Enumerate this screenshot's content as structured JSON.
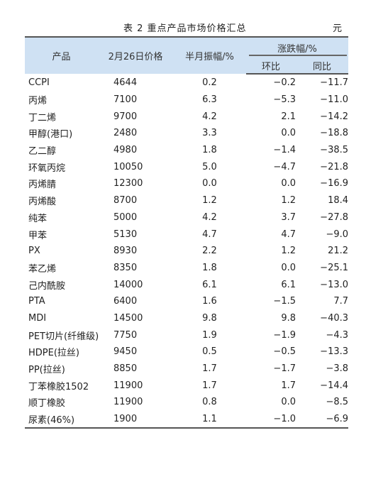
{
  "table": {
    "caption": "表 2  重点产品市场价格汇总",
    "unit": "元",
    "headers": {
      "product": "产品",
      "price": "2月26日价格",
      "half_month": "半月振幅/%",
      "change_group": "涨跌幅/%",
      "mom": "环比",
      "yoy": "同比"
    },
    "rows": [
      {
        "name": "CCPI",
        "price": "4644",
        "half": "0.2",
        "mom": "−0.2",
        "yoy": "−11.7"
      },
      {
        "name": "丙烯",
        "price": "7100",
        "half": "6.3",
        "mom": "−5.3",
        "yoy": "−11.0"
      },
      {
        "name": "丁二烯",
        "price": "9700",
        "half": "4.2",
        "mom": "2.1",
        "yoy": "−14.2"
      },
      {
        "name": "甲醇(港口)",
        "price": "2480",
        "half": "3.3",
        "mom": "0.0",
        "yoy": "−18.8"
      },
      {
        "name": "乙二醇",
        "price": "4980",
        "half": "1.8",
        "mom": "−1.4",
        "yoy": "−38.5"
      },
      {
        "name": "环氧丙烷",
        "price": "10050",
        "half": "5.0",
        "mom": "−4.7",
        "yoy": "−21.8"
      },
      {
        "name": "丙烯腈",
        "price": "12300",
        "half": "0.0",
        "mom": "0.0",
        "yoy": "−16.9"
      },
      {
        "name": "丙烯酸",
        "price": "8700",
        "half": "1.2",
        "mom": "1.2",
        "yoy": "18.4"
      },
      {
        "name": "纯苯",
        "price": "5000",
        "half": "4.2",
        "mom": "3.7",
        "yoy": "−27.8"
      },
      {
        "name": "甲苯",
        "price": "5130",
        "half": "4.7",
        "mom": "4.7",
        "yoy": "−9.0"
      },
      {
        "name": "PX",
        "price": "8930",
        "half": "2.2",
        "mom": "1.2",
        "yoy": "21.2"
      },
      {
        "name": "苯乙烯",
        "price": "8350",
        "half": "1.8",
        "mom": "0.0",
        "yoy": "−25.1"
      },
      {
        "name": "己内酰胺",
        "price": "14000",
        "half": "6.1",
        "mom": "6.1",
        "yoy": "−13.0"
      },
      {
        "name": "PTA",
        "price": "6400",
        "half": "1.6",
        "mom": "−1.5",
        "yoy": "7.7"
      },
      {
        "name": "MDI",
        "price": "14500",
        "half": "9.8",
        "mom": "9.8",
        "yoy": "−40.3"
      },
      {
        "name": "PET切片(纤维级)",
        "price": "7750",
        "half": "1.9",
        "mom": "−1.9",
        "yoy": "−4.3"
      },
      {
        "name": "HDPE(拉丝)",
        "price": "9450",
        "half": "0.5",
        "mom": "−0.5",
        "yoy": "−13.3"
      },
      {
        "name": "PP(拉丝)",
        "price": "8850",
        "half": "1.7",
        "mom": "−1.7",
        "yoy": "−3.8"
      },
      {
        "name": "丁苯橡胶1502",
        "price": "11900",
        "half": "1.7",
        "mom": "1.7",
        "yoy": "−14.4"
      },
      {
        "name": "顺丁橡胶",
        "price": "11900",
        "half": "0.8",
        "mom": "0.0",
        "yoy": "−8.5"
      },
      {
        "name": "尿素(46%)",
        "price": "1900",
        "half": "1.1",
        "mom": "−1.0",
        "yoy": "−6.9"
      }
    ]
  }
}
